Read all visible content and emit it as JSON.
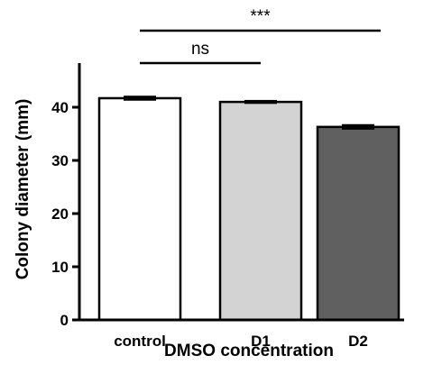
{
  "chart_data": {
    "type": "bar",
    "title": "",
    "xlabel": "DMSO concentration",
    "ylabel": "Colony diameter (mm)",
    "ylim": [
      0,
      45
    ],
    "yticks": [
      0,
      10,
      20,
      30,
      40
    ],
    "grid": false,
    "categories": [
      "control",
      "D1",
      "D2"
    ],
    "values": [
      41.7,
      41.0,
      36.3
    ],
    "errors": [
      0.3,
      0.2,
      0.35
    ],
    "bar_colors": [
      "#ffffff",
      "#d3d3d3",
      "#606060"
    ],
    "significance": [
      {
        "from": 0,
        "to": 1,
        "label": "ns",
        "y": 45
      },
      {
        "from": 0,
        "to": 2,
        "label": "***",
        "y": 50
      }
    ]
  }
}
